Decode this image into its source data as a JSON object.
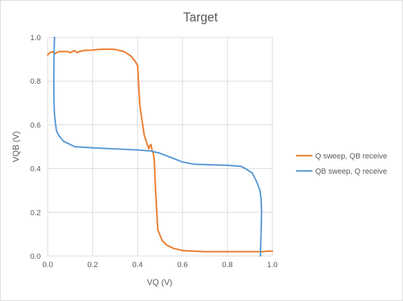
{
  "chart_data": {
    "type": "line",
    "title": "Target",
    "xlabel": "VQ (V)",
    "ylabel": "VQB (V)",
    "xlim": [
      0,
      1.0
    ],
    "ylim": [
      0,
      1.0
    ],
    "xticks": [
      "0.0",
      "0.2",
      "0.4",
      "0.6",
      "0.8",
      "1.0"
    ],
    "yticks": [
      "0.0",
      "0.2",
      "0.4",
      "0.6",
      "0.8",
      "1.0"
    ],
    "grid": true,
    "legend": "right",
    "series": [
      {
        "name": "Q sweep, QB receive",
        "color": "#ED7D31",
        "points": [
          [
            0.0,
            0.92
          ],
          [
            0.01,
            0.93
          ],
          [
            0.02,
            0.935
          ],
          [
            0.03,
            0.925
          ],
          [
            0.04,
            0.93
          ],
          [
            0.05,
            0.935
          ],
          [
            0.07,
            0.935
          ],
          [
            0.09,
            0.935
          ],
          [
            0.1,
            0.93
          ],
          [
            0.11,
            0.935
          ],
          [
            0.12,
            0.94
          ],
          [
            0.13,
            0.93
          ],
          [
            0.14,
            0.935
          ],
          [
            0.16,
            0.94
          ],
          [
            0.2,
            0.942
          ],
          [
            0.24,
            0.946
          ],
          [
            0.28,
            0.946
          ],
          [
            0.3,
            0.945
          ],
          [
            0.34,
            0.935
          ],
          [
            0.37,
            0.915
          ],
          [
            0.39,
            0.89
          ],
          [
            0.4,
            0.87
          ],
          [
            0.41,
            0.69
          ],
          [
            0.42,
            0.62
          ],
          [
            0.43,
            0.55
          ],
          [
            0.44,
            0.52
          ],
          [
            0.45,
            0.49
          ],
          [
            0.455,
            0.505
          ],
          [
            0.46,
            0.51
          ],
          [
            0.465,
            0.48
          ],
          [
            0.47,
            0.47
          ],
          [
            0.475,
            0.43
          ],
          [
            0.48,
            0.3
          ],
          [
            0.49,
            0.12
          ],
          [
            0.5,
            0.095
          ],
          [
            0.51,
            0.07
          ],
          [
            0.53,
            0.05
          ],
          [
            0.56,
            0.035
          ],
          [
            0.6,
            0.025
          ],
          [
            0.65,
            0.022
          ],
          [
            0.7,
            0.02
          ],
          [
            0.8,
            0.02
          ],
          [
            0.9,
            0.02
          ],
          [
            0.96,
            0.02
          ],
          [
            0.98,
            0.022
          ],
          [
            1.0,
            0.022
          ]
        ]
      },
      {
        "name": "QB sweep, Q receive",
        "color": "#5B9BD5",
        "points": [
          [
            0.03,
            1.0
          ],
          [
            0.028,
            0.9
          ],
          [
            0.027,
            0.8
          ],
          [
            0.028,
            0.7
          ],
          [
            0.03,
            0.65
          ],
          [
            0.035,
            0.6
          ],
          [
            0.04,
            0.57
          ],
          [
            0.05,
            0.55
          ],
          [
            0.07,
            0.525
          ],
          [
            0.1,
            0.51
          ],
          [
            0.12,
            0.5
          ],
          [
            0.2,
            0.495
          ],
          [
            0.3,
            0.49
          ],
          [
            0.4,
            0.485
          ],
          [
            0.46,
            0.48
          ],
          [
            0.5,
            0.47
          ],
          [
            0.55,
            0.45
          ],
          [
            0.6,
            0.43
          ],
          [
            0.65,
            0.42
          ],
          [
            0.7,
            0.418
          ],
          [
            0.8,
            0.415
          ],
          [
            0.86,
            0.41
          ],
          [
            0.88,
            0.4
          ],
          [
            0.91,
            0.38
          ],
          [
            0.93,
            0.34
          ],
          [
            0.945,
            0.3
          ],
          [
            0.95,
            0.26
          ],
          [
            0.952,
            0.2
          ],
          [
            0.95,
            0.12
          ],
          [
            0.948,
            0.05
          ],
          [
            0.947,
            0.0
          ]
        ]
      }
    ]
  }
}
